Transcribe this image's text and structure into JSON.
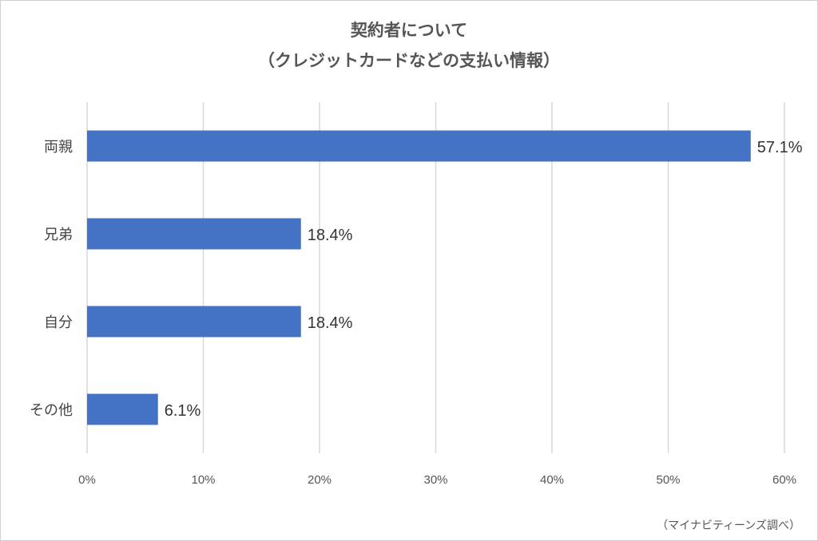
{
  "chart_data": {
    "type": "bar",
    "orientation": "horizontal",
    "title": [
      "契約者について",
      "（クレジットカードなどの支払い情報）"
    ],
    "categories": [
      "両親",
      "兄弟",
      "自分",
      "その他"
    ],
    "values": [
      57.1,
      18.4,
      18.4,
      6.1
    ],
    "value_labels": [
      "57.1%",
      "18.4%",
      "18.4%",
      "6.1%"
    ],
    "xlim": [
      0,
      60
    ],
    "xticks": [
      0,
      10,
      20,
      30,
      40,
      50,
      60
    ],
    "xtick_labels": [
      "0%",
      "10%",
      "20%",
      "30%",
      "40%",
      "50%",
      "60%"
    ],
    "grid": true,
    "bar_color": "#4472C4",
    "source_note": "（マイナビティーンズ調べ）"
  }
}
